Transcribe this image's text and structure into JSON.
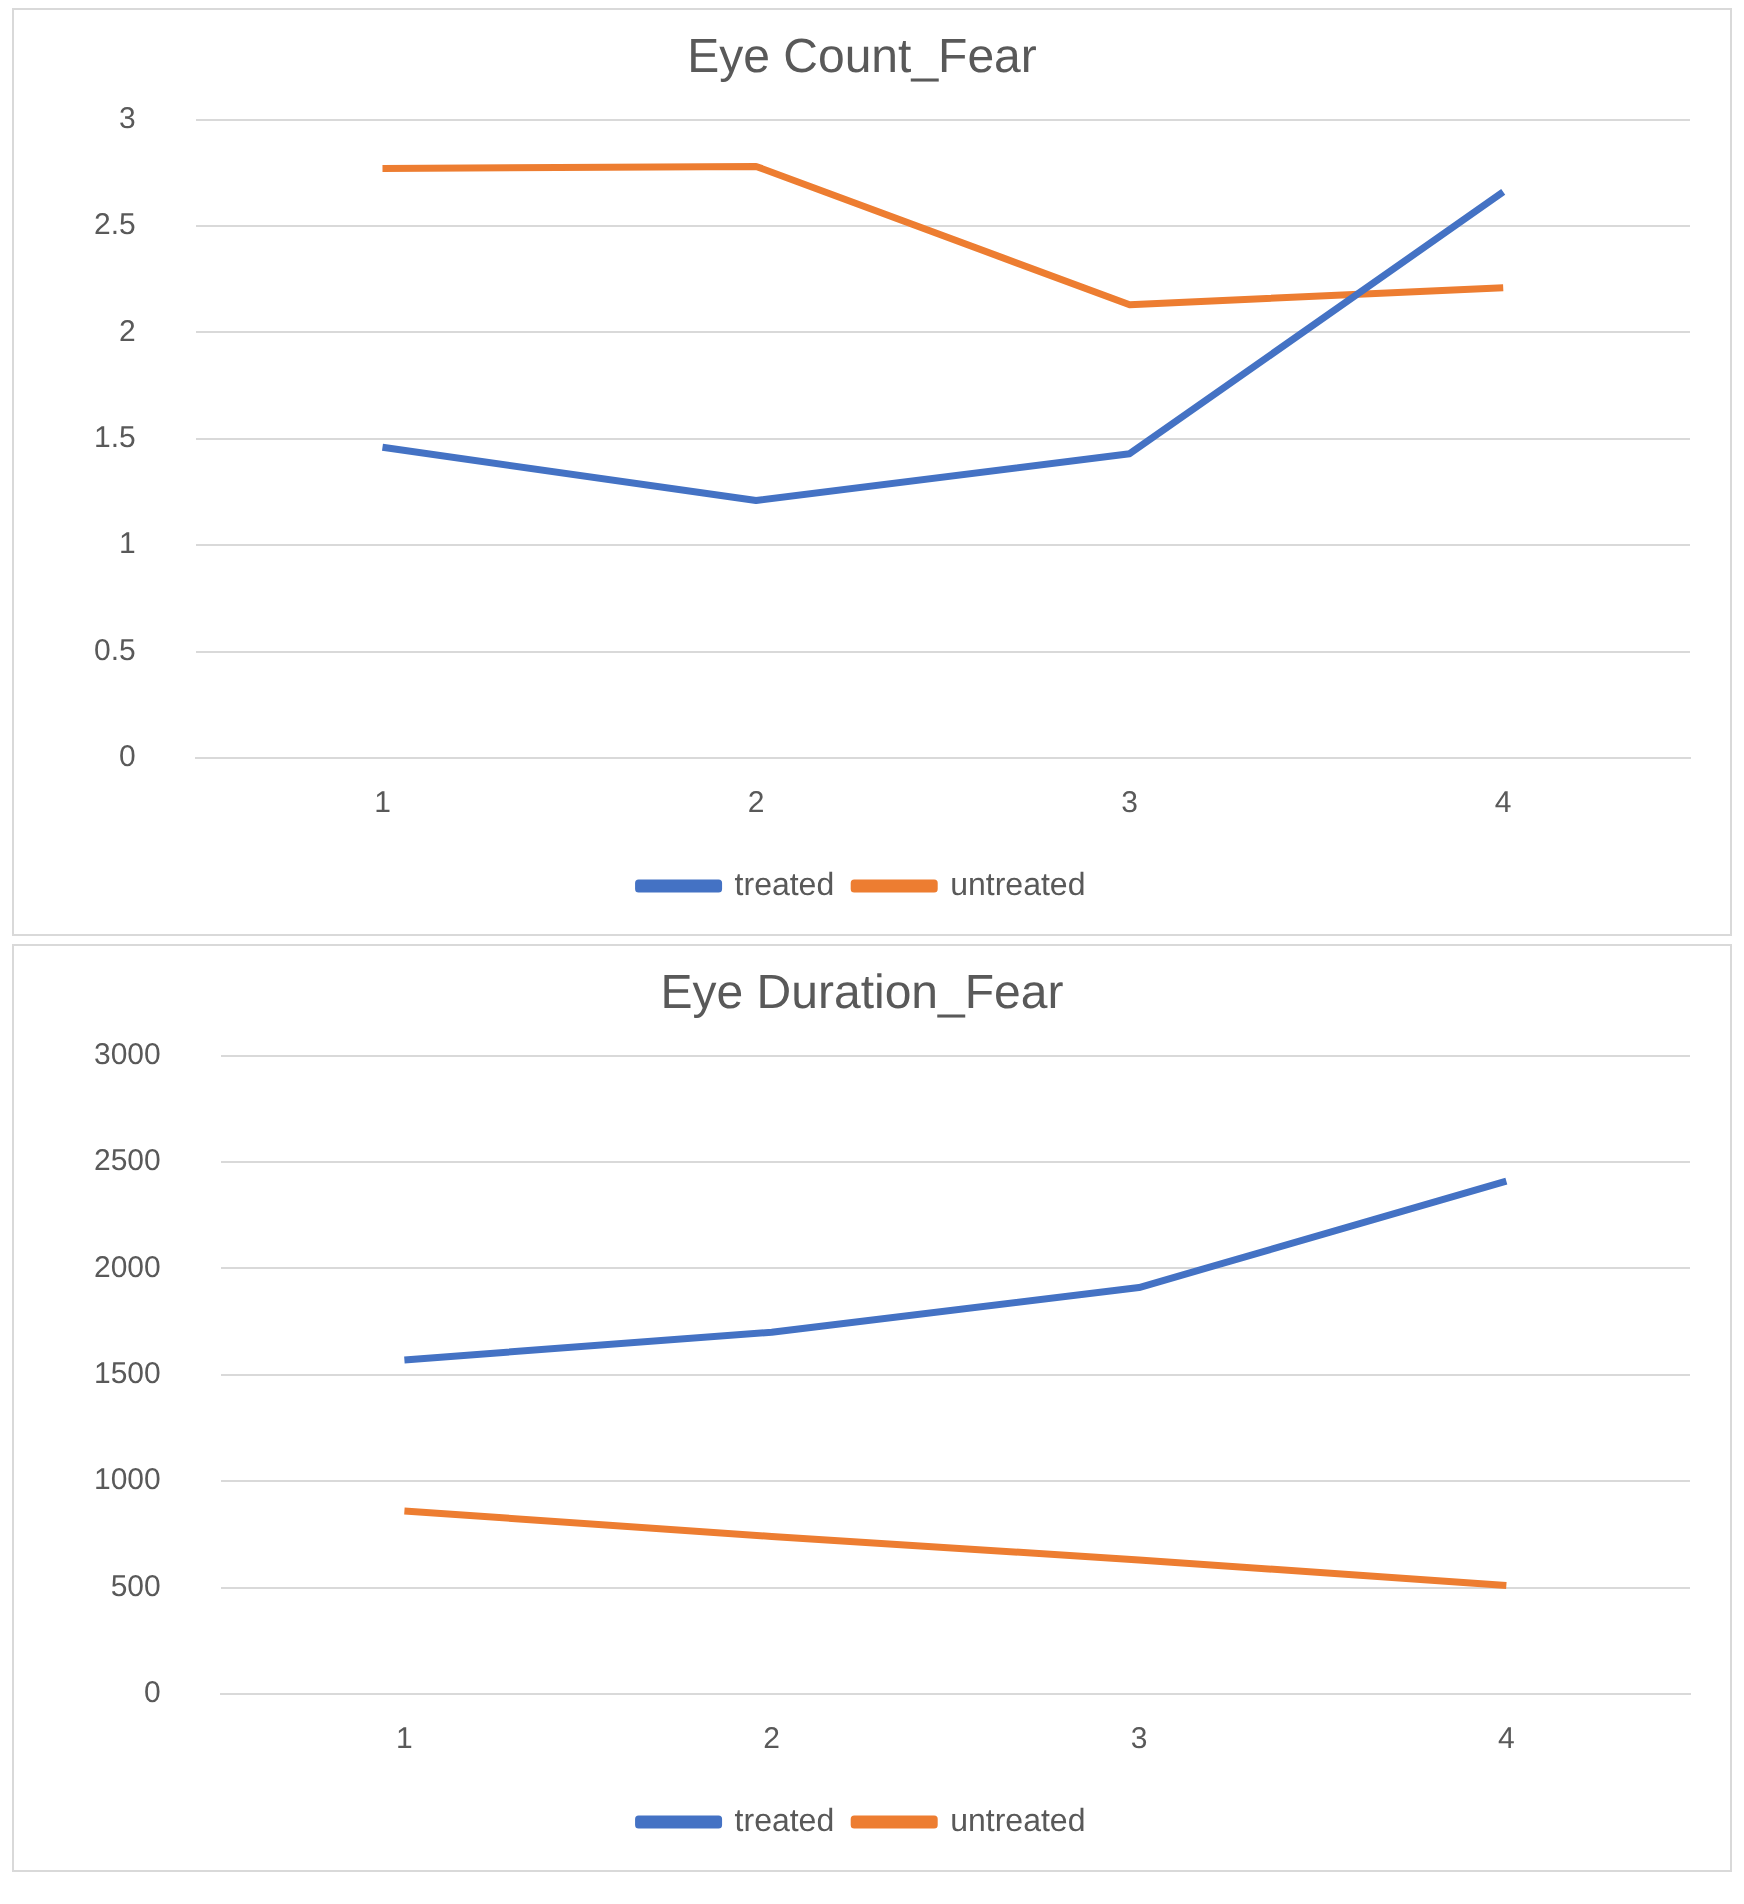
{
  "chart_data": [
    {
      "type": "line",
      "title": "Eye Count_Fear",
      "categories": [
        "1",
        "2",
        "3",
        "4"
      ],
      "series": [
        {
          "name": "treated",
          "color": "#4472c4",
          "values": [
            1.46,
            1.21,
            1.43,
            2.66
          ]
        },
        {
          "name": "untreated",
          "color": "#ed7d31",
          "values": [
            2.77,
            2.78,
            2.13,
            2.21
          ]
        }
      ],
      "ylim": [
        0,
        3
      ],
      "yticks": [
        0,
        0.5,
        1,
        1.5,
        2,
        2.5,
        3
      ],
      "grid": "y",
      "legend": "bottom",
      "marker": "none",
      "line_style": "solid"
    },
    {
      "type": "line",
      "title": "Eye Duration_Fear",
      "categories": [
        "1",
        "2",
        "3",
        "4"
      ],
      "series": [
        {
          "name": "treated",
          "color": "#4472c4",
          "values": [
            1570,
            1700,
            1910,
            2410
          ]
        },
        {
          "name": "untreated",
          "color": "#ed7d31",
          "values": [
            860,
            740,
            630,
            510
          ]
        }
      ],
      "ylim": [
        0,
        3000
      ],
      "yticks": [
        0,
        500,
        1000,
        1500,
        2000,
        2500,
        3000
      ],
      "grid": "y",
      "legend": "bottom",
      "marker": "none",
      "line_style": "solid"
    }
  ]
}
